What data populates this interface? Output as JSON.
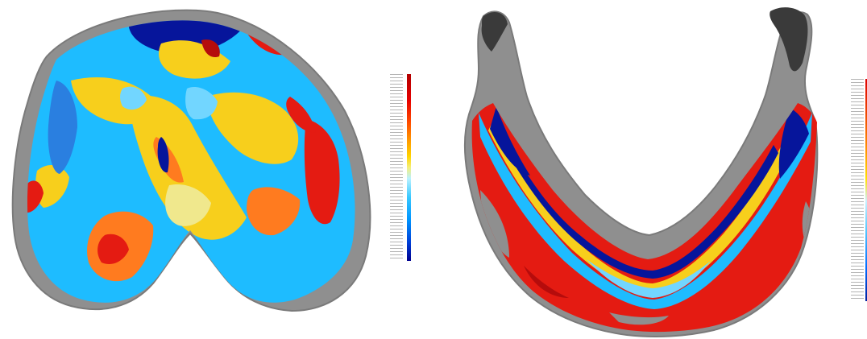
{
  "image": {
    "description_free": true,
    "colors": {
      "gray": "#8f8f8f",
      "dark_gray": "#3a3a3a",
      "red": "#e41b12",
      "dark_red": "#b50c0c",
      "orange": "#ff7b1f",
      "yellow": "#f7cf1c",
      "pale_yellow": "#f0e88d",
      "cyan": "#1ebcff",
      "light_blue": "#72d6ff",
      "blue": "#2a7fe0",
      "dark_blue": "#06159b"
    },
    "panels": [
      {
        "name": "left-scan"
      },
      {
        "name": "right-scan"
      }
    ],
    "colorbars": [
      {
        "name": "left-colorbar"
      },
      {
        "name": "right-colorbar"
      }
    ]
  }
}
